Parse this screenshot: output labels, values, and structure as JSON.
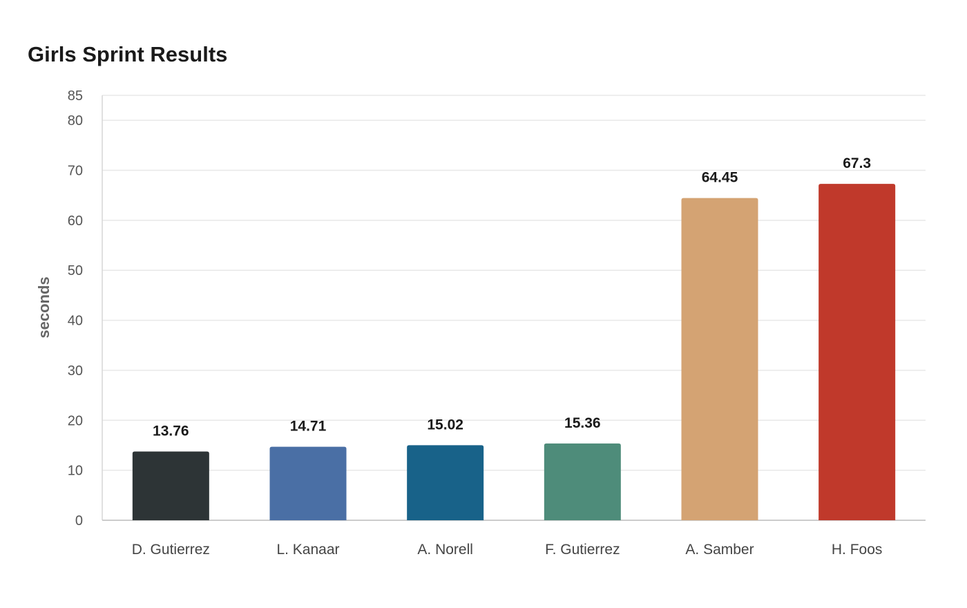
{
  "chart_data": {
    "type": "bar",
    "title": "Girls Sprint Results",
    "xlabel": "",
    "ylabel": "seconds",
    "categories": [
      "D. Gutierrez",
      "L. Kanaar",
      "A. Norell",
      "F. Gutierrez",
      "A. Samber",
      "H. Foos"
    ],
    "values": [
      13.76,
      14.71,
      15.02,
      15.36,
      64.45,
      67.3
    ],
    "value_labels": [
      "13.76",
      "14.71",
      "15.02",
      "15.36",
      "64.45",
      "67.3"
    ],
    "colors": [
      "#2d3436",
      "#4a6fa5",
      "#186289",
      "#4e8c7a",
      "#d4a373",
      "#c0392b"
    ],
    "ylim": [
      0,
      85
    ],
    "yticks": [
      0,
      10,
      20,
      30,
      40,
      50,
      60,
      70,
      80,
      85
    ],
    "grid": true,
    "legend": "none"
  }
}
